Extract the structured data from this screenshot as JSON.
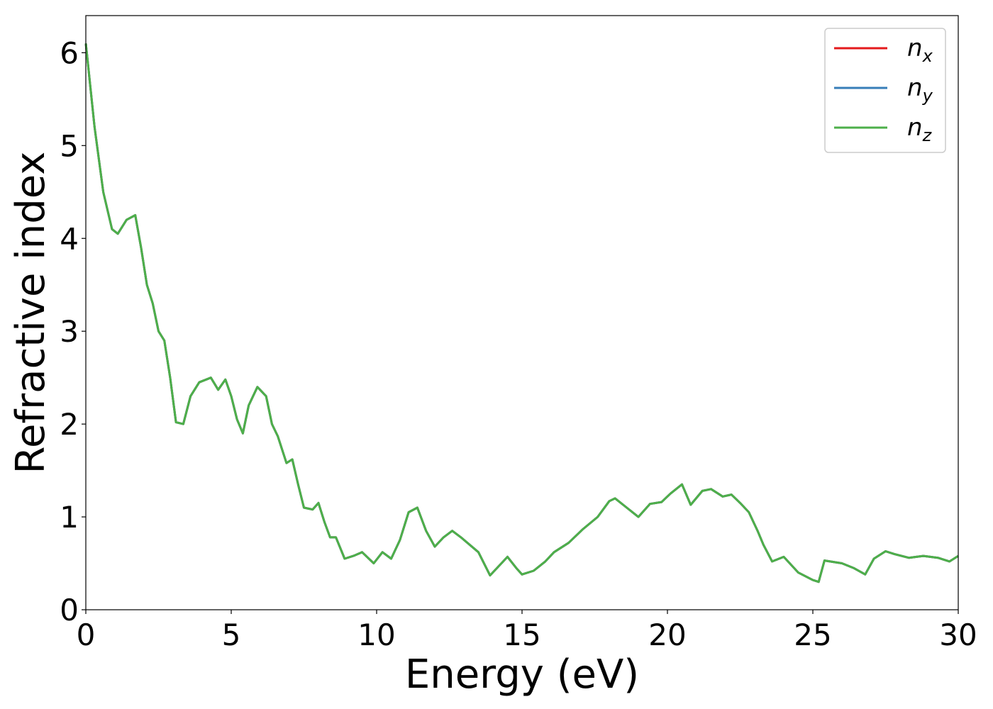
{
  "chart_data": {
    "type": "line",
    "xlabel": "Energy (eV)",
    "ylabel": "Refractive index",
    "xlim": [
      0,
      30
    ],
    "ylim": [
      0,
      6.4
    ],
    "xticks": [
      "0",
      "5",
      "10",
      "15",
      "20",
      "25",
      "30"
    ],
    "yticks": [
      "0",
      "1",
      "2",
      "3",
      "4",
      "5",
      "6"
    ],
    "grid": false,
    "legend_position": "top-right",
    "series": [
      {
        "name": "n_x",
        "label_base": "n",
        "label_sub": "x",
        "color": "#e41a1c",
        "x": [
          0,
          0.3,
          0.6,
          0.9,
          1.1,
          1.4,
          1.7,
          1.9,
          2.1,
          2.3,
          2.5,
          2.7,
          2.9,
          3.1,
          3.35,
          3.6,
          3.9,
          4.3,
          4.55,
          4.8,
          5.0,
          5.2,
          5.4,
          5.6,
          5.9,
          6.2,
          6.4,
          6.6,
          6.9,
          7.1,
          7.3,
          7.5,
          7.8,
          8.0,
          8.2,
          8.4,
          8.6,
          8.9,
          9.2,
          9.5,
          9.9,
          10.2,
          10.5,
          10.8,
          11.1,
          11.4,
          11.7,
          12.0,
          12.3,
          12.6,
          12.9,
          13.5,
          13.9,
          14.2,
          14.5,
          14.8,
          15.0,
          15.4,
          15.8,
          16.1,
          16.6,
          17.1,
          17.6,
          18.0,
          18.2,
          18.6,
          19.0,
          19.4,
          19.8,
          20.1,
          20.5,
          20.8,
          21.2,
          21.5,
          21.9,
          22.2,
          22.5,
          22.8,
          23.1,
          23.3,
          23.6,
          24.0,
          24.5,
          25.0,
          25.2,
          25.4,
          26.0,
          26.4,
          26.8,
          27.1,
          27.5,
          27.8,
          28.3,
          28.8,
          29.3,
          29.7,
          30.0
        ],
        "y": [
          6.1,
          5.2,
          4.5,
          4.1,
          4.05,
          4.2,
          4.25,
          3.9,
          3.5,
          3.3,
          3.0,
          2.9,
          2.5,
          2.02,
          2.0,
          2.3,
          2.45,
          2.5,
          2.37,
          2.48,
          2.3,
          2.05,
          1.9,
          2.2,
          2.4,
          2.3,
          2.0,
          1.87,
          1.58,
          1.62,
          1.35,
          1.1,
          1.08,
          1.15,
          0.95,
          0.78,
          0.78,
          0.55,
          0.58,
          0.62,
          0.5,
          0.62,
          0.55,
          0.75,
          1.05,
          1.1,
          0.85,
          0.68,
          0.78,
          0.85,
          0.78,
          0.62,
          0.37,
          0.47,
          0.57,
          0.45,
          0.38,
          0.42,
          0.52,
          0.62,
          0.72,
          0.87,
          1.0,
          1.17,
          1.2,
          1.1,
          1.0,
          1.14,
          1.16,
          1.25,
          1.35,
          1.13,
          1.28,
          1.3,
          1.22,
          1.24,
          1.15,
          1.05,
          0.85,
          0.7,
          0.52,
          0.57,
          0.4,
          0.32,
          0.3,
          0.53,
          0.5,
          0.45,
          0.38,
          0.55,
          0.63,
          0.6,
          0.56,
          0.58,
          0.56,
          0.52,
          0.58
        ]
      },
      {
        "name": "n_y",
        "label_base": "n",
        "label_sub": "y",
        "color": "#377eb8",
        "x": [
          0,
          0.3,
          0.6,
          0.9,
          1.1,
          1.4,
          1.7,
          1.9,
          2.1,
          2.3,
          2.5,
          2.7,
          2.9,
          3.1,
          3.35,
          3.6,
          3.9,
          4.3,
          4.55,
          4.8,
          5.0,
          5.2,
          5.4,
          5.6,
          5.9,
          6.2,
          6.4,
          6.6,
          6.9,
          7.1,
          7.3,
          7.5,
          7.8,
          8.0,
          8.2,
          8.4,
          8.6,
          8.9,
          9.2,
          9.5,
          9.9,
          10.2,
          10.5,
          10.8,
          11.1,
          11.4,
          11.7,
          12.0,
          12.3,
          12.6,
          12.9,
          13.5,
          13.9,
          14.2,
          14.5,
          14.8,
          15.0,
          15.4,
          15.8,
          16.1,
          16.6,
          17.1,
          17.6,
          18.0,
          18.2,
          18.6,
          19.0,
          19.4,
          19.8,
          20.1,
          20.5,
          20.8,
          21.2,
          21.5,
          21.9,
          22.2,
          22.5,
          22.8,
          23.1,
          23.3,
          23.6,
          24.0,
          24.5,
          25.0,
          25.2,
          25.4,
          26.0,
          26.4,
          26.8,
          27.1,
          27.5,
          27.8,
          28.3,
          28.8,
          29.3,
          29.7,
          30.0
        ],
        "y": [
          6.1,
          5.2,
          4.5,
          4.1,
          4.05,
          4.2,
          4.25,
          3.9,
          3.5,
          3.3,
          3.0,
          2.9,
          2.5,
          2.02,
          2.0,
          2.3,
          2.45,
          2.5,
          2.37,
          2.48,
          2.3,
          2.05,
          1.9,
          2.2,
          2.4,
          2.3,
          2.0,
          1.87,
          1.58,
          1.62,
          1.35,
          1.1,
          1.08,
          1.15,
          0.95,
          0.78,
          0.78,
          0.55,
          0.58,
          0.62,
          0.5,
          0.62,
          0.55,
          0.75,
          1.05,
          1.1,
          0.85,
          0.68,
          0.78,
          0.85,
          0.78,
          0.62,
          0.37,
          0.47,
          0.57,
          0.45,
          0.38,
          0.42,
          0.52,
          0.62,
          0.72,
          0.87,
          1.0,
          1.17,
          1.2,
          1.1,
          1.0,
          1.14,
          1.16,
          1.25,
          1.35,
          1.13,
          1.28,
          1.3,
          1.22,
          1.24,
          1.15,
          1.05,
          0.85,
          0.7,
          0.52,
          0.57,
          0.4,
          0.32,
          0.3,
          0.53,
          0.5,
          0.45,
          0.38,
          0.55,
          0.63,
          0.6,
          0.56,
          0.58,
          0.56,
          0.52,
          0.58
        ]
      },
      {
        "name": "n_z",
        "label_base": "n",
        "label_sub": "z",
        "color": "#4daf4a",
        "x": [
          0,
          0.3,
          0.6,
          0.9,
          1.1,
          1.4,
          1.7,
          1.9,
          2.1,
          2.3,
          2.5,
          2.7,
          2.9,
          3.1,
          3.35,
          3.6,
          3.9,
          4.3,
          4.55,
          4.8,
          5.0,
          5.2,
          5.4,
          5.6,
          5.9,
          6.2,
          6.4,
          6.6,
          6.9,
          7.1,
          7.3,
          7.5,
          7.8,
          8.0,
          8.2,
          8.4,
          8.6,
          8.9,
          9.2,
          9.5,
          9.9,
          10.2,
          10.5,
          10.8,
          11.1,
          11.4,
          11.7,
          12.0,
          12.3,
          12.6,
          12.9,
          13.5,
          13.9,
          14.2,
          14.5,
          14.8,
          15.0,
          15.4,
          15.8,
          16.1,
          16.6,
          17.1,
          17.6,
          18.0,
          18.2,
          18.6,
          19.0,
          19.4,
          19.8,
          20.1,
          20.5,
          20.8,
          21.2,
          21.5,
          21.9,
          22.2,
          22.5,
          22.8,
          23.1,
          23.3,
          23.6,
          24.0,
          24.5,
          25.0,
          25.2,
          25.4,
          26.0,
          26.4,
          26.8,
          27.1,
          27.5,
          27.8,
          28.3,
          28.8,
          29.3,
          29.7,
          30.0
        ],
        "y": [
          6.1,
          5.2,
          4.5,
          4.1,
          4.05,
          4.2,
          4.25,
          3.9,
          3.5,
          3.3,
          3.0,
          2.9,
          2.5,
          2.02,
          2.0,
          2.3,
          2.45,
          2.5,
          2.37,
          2.48,
          2.3,
          2.05,
          1.9,
          2.2,
          2.4,
          2.3,
          2.0,
          1.87,
          1.58,
          1.62,
          1.35,
          1.1,
          1.08,
          1.15,
          0.95,
          0.78,
          0.78,
          0.55,
          0.58,
          0.62,
          0.5,
          0.62,
          0.55,
          0.75,
          1.05,
          1.1,
          0.85,
          0.68,
          0.78,
          0.85,
          0.78,
          0.62,
          0.37,
          0.47,
          0.57,
          0.45,
          0.38,
          0.42,
          0.52,
          0.62,
          0.72,
          0.87,
          1.0,
          1.17,
          1.2,
          1.1,
          1.0,
          1.14,
          1.16,
          1.25,
          1.35,
          1.13,
          1.28,
          1.3,
          1.22,
          1.24,
          1.15,
          1.05,
          0.85,
          0.7,
          0.52,
          0.57,
          0.4,
          0.32,
          0.3,
          0.53,
          0.5,
          0.45,
          0.38,
          0.55,
          0.63,
          0.6,
          0.56,
          0.58,
          0.56,
          0.52,
          0.58
        ]
      }
    ]
  }
}
